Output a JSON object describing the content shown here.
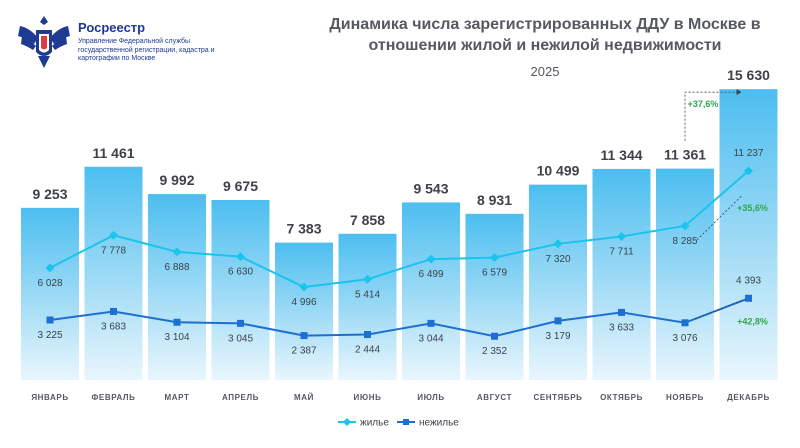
{
  "header": {
    "org_name": "Росреестр",
    "org_sub": "Управление Федеральной службы государственной регистрации, кадастра и картографии по Москве",
    "logo_icon": "double-headed-eagle-emblem-icon"
  },
  "chart_data": {
    "type": "bar",
    "title": "Динамика числа зарегистрированных ДДУ в Москве в отношении жилой и нежилой недвижимости",
    "subtitle": "2025",
    "categories": [
      "ЯНВАРЬ",
      "ФЕВРАЛЬ",
      "МАРТ",
      "АПРЕЛЬ",
      "МАЙ",
      "ИЮНЬ",
      "ИЮЛЬ",
      "АВГУСТ",
      "СЕНТЯБРЬ",
      "ОКТЯБРЬ",
      "НОЯБРЬ",
      "ДЕКАБРЬ"
    ],
    "totals": {
      "values": [
        9253,
        11461,
        9992,
        9675,
        7383,
        7858,
        9543,
        8931,
        10499,
        11344,
        11361,
        15630
      ],
      "labels": [
        "9 253",
        "11 461",
        "9 992",
        "9 675",
        "7 383",
        "7 858",
        "9 543",
        "8 931",
        "10 499",
        "11 344",
        "11 361",
        "15 630"
      ],
      "color": "#5ec4ee"
    },
    "series": [
      {
        "name": "жилье",
        "type": "line",
        "color": "#1ac4ec",
        "values": [
          6028,
          7778,
          6888,
          6630,
          4996,
          5414,
          6499,
          6579,
          7320,
          7711,
          8285,
          11237
        ],
        "labels": [
          "6 028",
          "7 778",
          "6 888",
          "6 630",
          "4 996",
          "5 414",
          "6 499",
          "6 579",
          "7 320",
          "7 711",
          "8 285",
          "11 237"
        ]
      },
      {
        "name": "нежилье",
        "type": "line",
        "color": "#1e6fd2",
        "values": [
          3225,
          3683,
          3104,
          3045,
          2387,
          2444,
          3044,
          2352,
          3179,
          3633,
          3076,
          4393
        ],
        "labels": [
          "3 225",
          "3 683",
          "3 104",
          "3 045",
          "2 387",
          "2 444",
          "3 044",
          "2 352",
          "3 179",
          "3 633",
          "3 076",
          "4 393"
        ]
      }
    ],
    "annotations": [
      {
        "text": "+37,6%",
        "target": "totals",
        "color": "#2da84a"
      },
      {
        "text": "+35,6%",
        "target": "жилье",
        "color": "#2da84a"
      },
      {
        "text": "+42,8%",
        "target": "нежилье",
        "color": "#2da84a"
      }
    ],
    "legend": "bottom-center",
    "ylim": [
      0,
      16500
    ],
    "grid": false
  }
}
